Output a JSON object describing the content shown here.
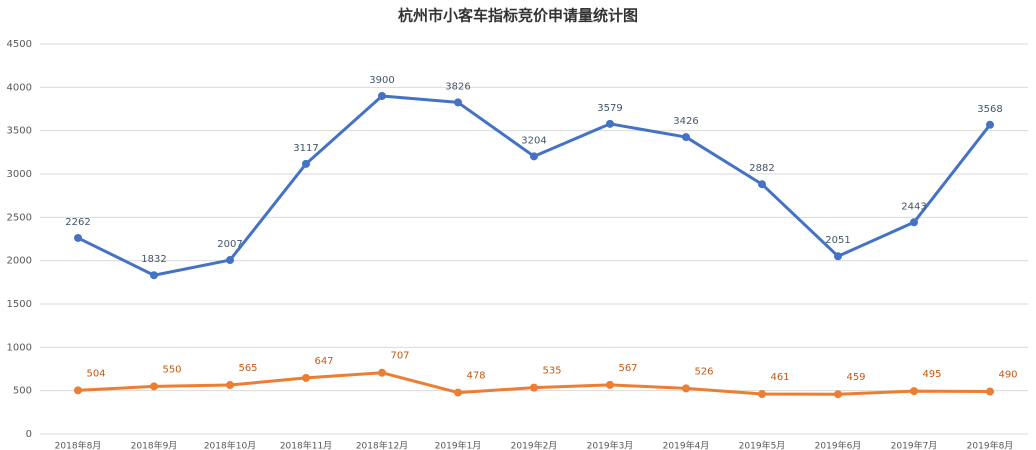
{
  "chart_data": {
    "type": "line",
    "title": "杭州市小客车指标竞价申请量统计图",
    "categories": [
      "2018年8月",
      "2018年9月",
      "2018年10月",
      "2018年11月",
      "2018年12月",
      "2019年1月",
      "2019年2月",
      "2019年3月",
      "2019年4月",
      "2019年5月",
      "2019年6月",
      "2019年7月",
      "2019年8月"
    ],
    "series": [
      {
        "color": "#4472c4",
        "values": [
          2262,
          1832,
          2007,
          3117,
          3900,
          3826,
          3204,
          3579,
          3426,
          2882,
          2051,
          2443,
          3568
        ]
      },
      {
        "color": "#ed7d31",
        "values": [
          504,
          550,
          565,
          647,
          707,
          478,
          535,
          567,
          526,
          461,
          459,
          495,
          490
        ]
      }
    ],
    "ylim": [
      0,
      4500
    ],
    "yticks": [
      0,
      500,
      1000,
      1500,
      2000,
      2500,
      3000,
      3500,
      4000,
      4500
    ],
    "grid": true
  }
}
